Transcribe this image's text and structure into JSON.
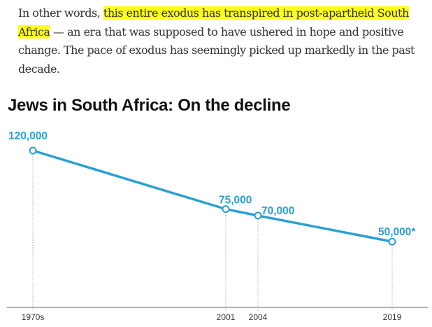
{
  "paragraph": {
    "before": "In other words, ",
    "highlight": "this entire exodus has transpired in post-apartheid South Africa",
    "after": " — an era that was supposed to have ushered in hope and positive change. The pace of exodus has seemingly picked up markedly in the past decade."
  },
  "chart_data": {
    "type": "line",
    "title": "Jews in South Africa: On the decline",
    "categories": [
      "1970s",
      "2001",
      "2004",
      "2019"
    ],
    "values": [
      120000,
      75000,
      70000,
      50000
    ],
    "data_labels": [
      "120,000",
      "75,000",
      "70,000",
      "50,000*"
    ],
    "xlabel": "",
    "ylabel": "",
    "ylim": [
      0,
      120000
    ],
    "grid": false,
    "color": "#2a9fd6"
  }
}
